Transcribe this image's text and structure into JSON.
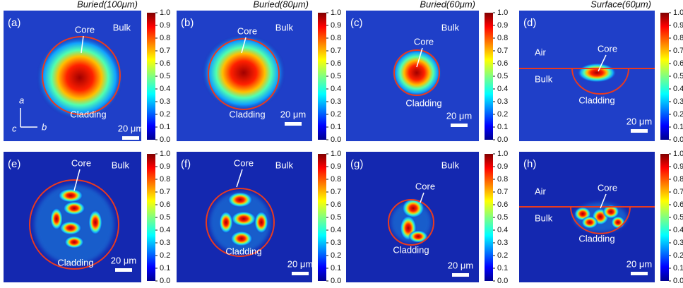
{
  "column_titles": [
    "Buried(100μm)",
    "Buried(80μm)",
    "Buried(60μm)",
    "Surface(60μm)"
  ],
  "colorbar_ticks": [
    "0.0",
    "0.1",
    "0.2",
    "0.3",
    "0.4",
    "0.5",
    "0.6",
    "0.7",
    "0.8",
    "0.9",
    "1.0"
  ],
  "axes": {
    "a": "a",
    "b": "b",
    "c": "c"
  },
  "panels": [
    {
      "label": "(a)",
      "core": "Core",
      "bulk": "Bulk",
      "cladding": "Cladding",
      "scale": "20 μm"
    },
    {
      "label": "(b)",
      "core": "Core",
      "bulk": "Bulk",
      "cladding": "Cladding",
      "scale": "20 μm"
    },
    {
      "label": "(c)",
      "core": "Core",
      "bulk": "Bulk",
      "cladding": "Cladding",
      "scale": "20 μm"
    },
    {
      "label": "(d)",
      "air": "Air",
      "bulk": "Bulk",
      "core": "Core",
      "cladding": "Cladding",
      "scale": "20 μm"
    },
    {
      "label": "(e)",
      "core": "Core",
      "bulk": "Bulk",
      "cladding": "Cladding",
      "scale": "20 μm"
    },
    {
      "label": "(f)",
      "core": "Core",
      "bulk": "Bulk",
      "cladding": "Cladding",
      "scale": "20 μm"
    },
    {
      "label": "(g)",
      "core": "Core",
      "bulk": "Bulk",
      "cladding": "Cladding",
      "scale": "20 μm"
    },
    {
      "label": "(h)",
      "air": "Air",
      "bulk": "Bulk",
      "core": "Core",
      "cladding": "Cladding",
      "scale": "20 μm"
    }
  ]
}
